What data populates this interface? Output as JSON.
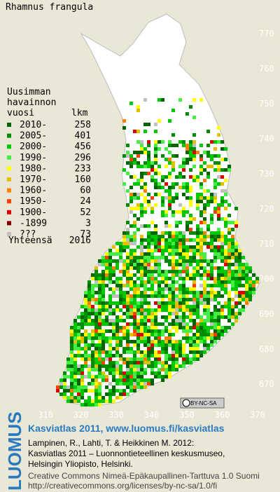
{
  "title": "Rhamnus frangula",
  "map": {
    "northing": [
      770,
      760,
      750,
      740,
      730,
      720,
      710,
      700,
      690,
      680,
      670
    ],
    "easting": [
      310,
      320,
      330,
      340,
      350,
      360,
      370
    ]
  },
  "legend": {
    "heading": [
      "Uusimman",
      "havainnon",
      "vuosi"
    ],
    "count_heading": "lkm",
    "entries": [
      {
        "label": "2010-",
        "count": 258,
        "color": "#006400"
      },
      {
        "label": "2005-",
        "count": 401,
        "color": "#008c00"
      },
      {
        "label": "2000-",
        "count": 456,
        "color": "#00c800"
      },
      {
        "label": "1990-",
        "count": 296,
        "color": "#44ee44"
      },
      {
        "label": "1980-",
        "count": 233,
        "color": "#ffff00"
      },
      {
        "label": "1970-",
        "count": 160,
        "color": "#e0c000"
      },
      {
        "label": "1960-",
        "count": 60,
        "color": "#ff8000"
      },
      {
        "label": "1950-",
        "count": 24,
        "color": "#ff4000"
      },
      {
        "label": "1900-",
        "count": 52,
        "color": "#dd0000"
      },
      {
        "label": "-1899",
        "count": 3,
        "color": "#800000"
      },
      {
        "label": "???",
        "count": 73,
        "color": "#c0c0c0"
      }
    ],
    "total_label": "Yhteensä",
    "total": 2016
  },
  "license_badge": "BY-NC-SA",
  "footer": {
    "logo": "LUOMUS",
    "link": "Kasviatlas 2011, www.luomus.fi/kasviatlas",
    "citation": [
      "Lampinen, R., Lahti, T. & Heikkinen M. 2012:",
      "Kasviatlas 2011 – Luonnontieteellinen keskusmuseo,",
      "Helsingin Yliopisto, Helsinki."
    ],
    "license": [
      "Creative Commons Nimeä-Epäkaupallinen-Tarttuva 1.0 Suomi",
      "http://creativecommons.org/licenses/by-nc-sa/1.0/fi"
    ]
  }
}
